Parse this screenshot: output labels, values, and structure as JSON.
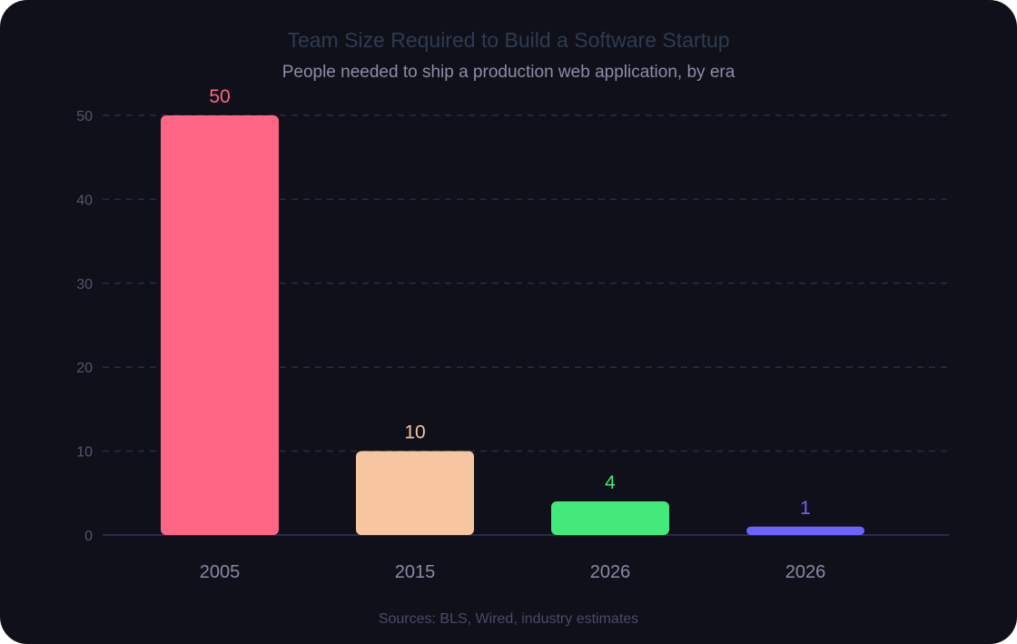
{
  "chart_data": {
    "type": "bar",
    "title": "Team Size Required to Build a Software Startup",
    "subtitle": "People needed to ship a production web application, by era",
    "categories": [
      "2005",
      "2015",
      "2026",
      "2026"
    ],
    "values": [
      50,
      10,
      4,
      1
    ],
    "colors": [
      "#ff6584",
      "#f7c59f",
      "#43e97b",
      "#6c63ff"
    ],
    "ylim": [
      0,
      50
    ],
    "yticks": [
      0,
      10,
      20,
      30,
      40,
      50
    ],
    "grid": true,
    "data_labels": true,
    "source": "Sources: BLS, Wired, industry estimates"
  }
}
